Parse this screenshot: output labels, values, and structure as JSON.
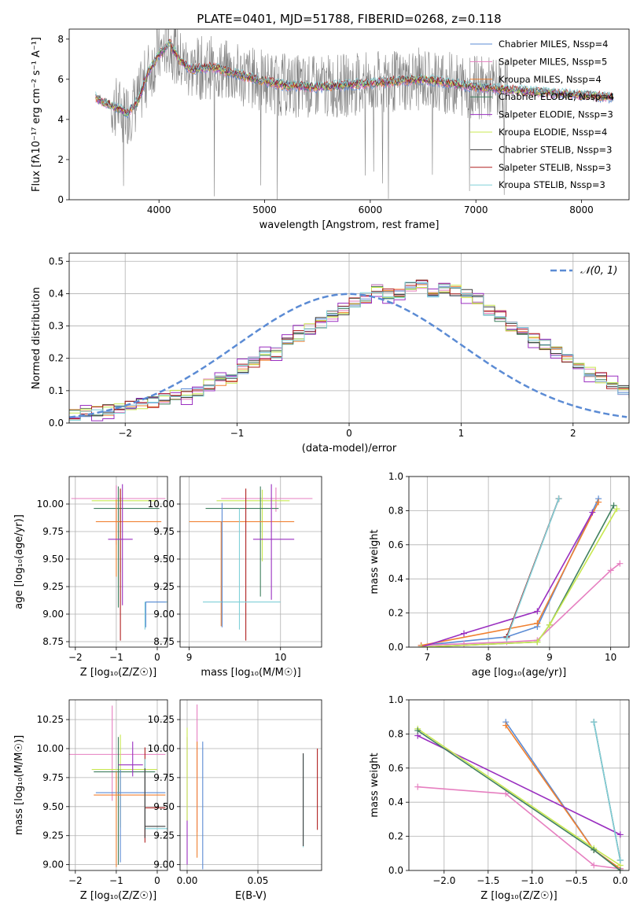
{
  "colors": {
    "chabrier_miles": "#5b8bd4",
    "salpeter_miles": "#e67fc0",
    "kroupa_miles": "#f08030",
    "chabrier_elodie": "#408060",
    "salpeter_elodie": "#9a2fc0",
    "kroupa_elodie": "#c8e850",
    "chabrier_stelib": "#3c3c3c",
    "salpeter_stelib": "#b02020",
    "kroupa_stelib": "#80d0d8",
    "data_gray": "#808080",
    "normal_curve": "#5b8bd4"
  },
  "chart_data": [
    {
      "id": "spectrum",
      "type": "line",
      "title": "PLATE=0401, MJD=51788, FIBERID=0268, z=0.118",
      "xlabel": "wavelength [Angstrom, rest frame]",
      "ylabel": "Flux [fλ10⁻¹⁷ erg cm⁻² s⁻¹ A⁻¹]",
      "xlim": [
        3150,
        8450
      ],
      "ylim": [
        0,
        8.5
      ],
      "xticks": [
        4000,
        5000,
        6000,
        7000,
        8000
      ],
      "yticks": [
        0,
        2,
        4,
        6,
        8
      ],
      "legend_position": "upper right",
      "series": [
        {
          "name": "Chabrier MILES, N_SSP=4",
          "color_key": "chabrier_miles"
        },
        {
          "name": "Salpeter MILES, N_SSP=5",
          "color_key": "salpeter_miles"
        },
        {
          "name": "Kroupa MILES, N_SSP=4",
          "color_key": "kroupa_miles"
        },
        {
          "name": "Chabrier ELODIE, N_SSP=4",
          "color_key": "chabrier_elodie"
        },
        {
          "name": "Salpeter ELODIE, N_SSP=3",
          "color_key": "salpeter_elodie"
        },
        {
          "name": "Kroupa ELODIE, N_SSP=4",
          "color_key": "kroupa_elodie"
        },
        {
          "name": "Chabrier STELIB, N_SSP=3",
          "color_key": "chabrier_stelib"
        },
        {
          "name": "Salpeter STELIB, N_SSP=3",
          "color_key": "salpeter_stelib"
        },
        {
          "name": "Kroupa STELIB, N_SSP=3",
          "color_key": "kroupa_stelib"
        }
      ],
      "continuum_model": [
        [
          3400,
          5.1
        ],
        [
          3500,
          4.8
        ],
        [
          3600,
          4.6
        ],
        [
          3700,
          4.3
        ],
        [
          3800,
          4.9
        ],
        [
          3900,
          6.4
        ],
        [
          4000,
          7.2
        ],
        [
          4100,
          7.8
        ],
        [
          4200,
          6.9
        ],
        [
          4300,
          6.5
        ],
        [
          4500,
          6.6
        ],
        [
          4700,
          6.3
        ],
        [
          5000,
          5.9
        ],
        [
          5200,
          5.7
        ],
        [
          5500,
          5.6
        ],
        [
          6000,
          5.8
        ],
        [
          6500,
          6.0
        ],
        [
          7000,
          5.6
        ],
        [
          7500,
          5.4
        ],
        [
          8000,
          5.2
        ],
        [
          8300,
          5.1
        ]
      ],
      "noisy_range": [
        3550,
        7300
      ]
    },
    {
      "id": "residuals",
      "type": "histogram",
      "xlabel": "(data-model)/error",
      "ylabel": "Normed distribution",
      "xlim": [
        -2.5,
        2.5
      ],
      "ylim": [
        0,
        0.525
      ],
      "xticks": [
        -2,
        -1,
        0,
        1,
        2
      ],
      "yticks": [
        0.0,
        0.1,
        0.2,
        0.3,
        0.4,
        0.5
      ],
      "legend_position": "upper right",
      "legend": [
        "𝒩(0, 1)"
      ],
      "bin_edges_from": -2.5,
      "bin_width": 0.1,
      "base_heights": [
        0.025,
        0.03,
        0.035,
        0.04,
        0.045,
        0.055,
        0.06,
        0.065,
        0.075,
        0.085,
        0.09,
        0.1,
        0.12,
        0.13,
        0.14,
        0.17,
        0.19,
        0.21,
        0.22,
        0.26,
        0.27,
        0.29,
        0.31,
        0.33,
        0.35,
        0.37,
        0.39,
        0.42,
        0.4,
        0.4,
        0.42,
        0.43,
        0.4,
        0.42,
        0.41,
        0.4,
        0.38,
        0.35,
        0.33,
        0.3,
        0.28,
        0.26,
        0.24,
        0.22,
        0.2,
        0.17,
        0.16,
        0.14,
        0.12,
        0.1,
        0.09,
        0.08,
        0.07,
        0.06,
        0.055,
        0.05,
        0.045,
        0.04,
        0.035,
        0.03
      ]
    },
    {
      "id": "age_vs_Z",
      "type": "errorbar",
      "xlabel": "Z [log₁₀(Z/Z☉)]",
      "ylabel": "age  [log₁₀(age/yr)]",
      "xlim": [
        -2.15,
        0.25
      ],
      "ylim": [
        8.7,
        10.25
      ],
      "xticks": [
        -2,
        -1,
        0
      ],
      "yticks": [
        8.75,
        9.0,
        9.25,
        9.5,
        9.75,
        10.0
      ],
      "points": [
        {
          "k": "salpeter_miles",
          "x": -1.0,
          "xerr": [
            1.1,
            1.2
          ],
          "y": 10.05,
          "yerr": [
            0.42,
            0.12
          ]
        },
        {
          "k": "kroupa_elodie",
          "x": -0.9,
          "xerr": [
            0.7,
            0.9
          ],
          "y": 10.03,
          "yerr": [
            0.65,
            0.1
          ]
        },
        {
          "k": "chabrier_elodie",
          "x": -0.95,
          "xerr": [
            0.6,
            1.0
          ],
          "y": 9.96,
          "yerr": [
            0.9,
            0.2
          ]
        },
        {
          "k": "kroupa_miles",
          "x": -1.0,
          "xerr": [
            0.5,
            1.1
          ],
          "y": 9.84,
          "yerr": [
            0.5,
            0.2
          ]
        },
        {
          "k": "salpeter_stelib",
          "x": -0.9,
          "xerr": [
            0.0,
            0.0
          ],
          "y": 9.84,
          "yerr": [
            1.08,
            0.3
          ]
        },
        {
          "k": "salpeter_elodie",
          "x": -0.85,
          "xerr": [
            0.35,
            0.25
          ],
          "y": 9.68,
          "yerr": [
            0.6,
            0.5
          ]
        },
        {
          "k": "kroupa_stelib",
          "x": -0.3,
          "xerr": [
            0.0,
            0.55
          ],
          "y": 9.11,
          "yerr": [
            0.25,
            0.0
          ]
        },
        {
          "k": "chabrier_miles",
          "x": -0.28,
          "xerr": [
            0.0,
            0.5
          ],
          "y": 9.11,
          "yerr": [
            0.23,
            0.0
          ]
        }
      ]
    },
    {
      "id": "age_vs_mass",
      "type": "errorbar",
      "xlabel": "mass [log₁₀(M/M☉)]",
      "ylabel": "",
      "xlim": [
        8.9,
        10.45
      ],
      "ylim": [
        8.7,
        10.25
      ],
      "xticks": [
        9,
        10
      ],
      "yticks": [
        8.75,
        9.0,
        9.25,
        9.5,
        9.75,
        10.0
      ],
      "points": [
        {
          "k": "salpeter_miles",
          "x": 9.95,
          "xerr": [
            0.6,
            0.4
          ],
          "y": 10.05,
          "yerr": [
            0.12,
            0.1
          ]
        },
        {
          "k": "kroupa_elodie",
          "x": 9.8,
          "xerr": [
            0.5,
            0.3
          ],
          "y": 10.03,
          "yerr": [
            0.55,
            0.1
          ]
        },
        {
          "k": "chabrier_elodie",
          "x": 9.78,
          "xerr": [
            0.6,
            0.2
          ],
          "y": 9.96,
          "yerr": [
            0.8,
            0.2
          ]
        },
        {
          "k": "kroupa_miles",
          "x": 9.35,
          "xerr": [
            0.35,
            0.8
          ],
          "y": 9.84,
          "yerr": [
            0.95,
            0.0
          ]
        },
        {
          "k": "salpeter_stelib",
          "x": 9.62,
          "xerr": [
            0.0,
            0.0
          ],
          "y": 9.84,
          "yerr": [
            1.08,
            0.3
          ]
        },
        {
          "k": "salpeter_elodie",
          "x": 9.9,
          "xerr": [
            0.2,
            0.25
          ],
          "y": 9.68,
          "yerr": [
            0.55,
            0.5
          ]
        },
        {
          "k": "kroupa_stelib",
          "x": 9.55,
          "xerr": [
            0.4,
            0.45
          ],
          "y": 9.11,
          "yerr": [
            0.25,
            0.85
          ]
        },
        {
          "k": "chabrier_miles",
          "x": 9.36,
          "xerr": [
            0.0,
            0.0
          ],
          "y": 9.11,
          "yerr": [
            0.23,
            0.9
          ]
        }
      ]
    },
    {
      "id": "weight_vs_age",
      "type": "line",
      "xlabel": "age  [log₁₀(age/yr)]",
      "ylabel": "mass weight",
      "xlim": [
        6.7,
        10.3
      ],
      "ylim": [
        0,
        1.0
      ],
      "xticks": [
        7,
        8,
        9,
        10
      ],
      "yticks": [
        0.0,
        0.2,
        0.4,
        0.6,
        0.8,
        1.0
      ],
      "series": [
        {
          "k": "chabrier_miles",
          "x": [
            6.9,
            8.3,
            8.8,
            9.8
          ],
          "y": [
            0.01,
            0.06,
            0.12,
            0.87
          ]
        },
        {
          "k": "salpeter_miles",
          "x": [
            6.9,
            7.6,
            8.3,
            8.8,
            10.0,
            10.15
          ],
          "y": [
            0.01,
            0.02,
            0.03,
            0.04,
            0.45,
            0.49
          ]
        },
        {
          "k": "kroupa_miles",
          "x": [
            6.9,
            8.8,
            9.8
          ],
          "y": [
            0.01,
            0.14,
            0.85
          ]
        },
        {
          "k": "chabrier_elodie",
          "x": [
            6.9,
            8.8,
            9.0,
            10.05
          ],
          "y": [
            0.0,
            0.03,
            0.13,
            0.83
          ]
        },
        {
          "k": "salpeter_elodie",
          "x": [
            6.9,
            7.6,
            8.8,
            9.7
          ],
          "y": [
            0.0,
            0.08,
            0.21,
            0.79
          ]
        },
        {
          "k": "kroupa_elodie",
          "x": [
            6.9,
            8.8,
            9.0,
            10.1
          ],
          "y": [
            0.0,
            0.03,
            0.13,
            0.81
          ]
        },
        {
          "k": "chabrier_stelib",
          "x": [
            8.3,
            9.15
          ],
          "y": [
            0.06,
            0.87
          ]
        },
        {
          "k": "salpeter_stelib",
          "x": [
            8.3,
            9.15
          ],
          "y": [
            0.06,
            0.87
          ]
        },
        {
          "k": "kroupa_stelib",
          "x": [
            8.3,
            9.15
          ],
          "y": [
            0.05,
            0.87
          ]
        }
      ]
    },
    {
      "id": "mass_vs_Z",
      "type": "errorbar",
      "xlabel": "Z [log₁₀(Z/Z☉)]",
      "ylabel": "mass [log₁₀(M/M☉)]",
      "xlim": [
        -2.15,
        0.25
      ],
      "ylim": [
        8.95,
        10.42
      ],
      "xticks": [
        -2,
        -1,
        0
      ],
      "yticks": [
        9.0,
        9.25,
        9.5,
        9.75,
        10.0,
        10.25
      ],
      "points": [
        {
          "k": "salpeter_miles",
          "x": -1.1,
          "xerr": [
            1.2,
            1.3
          ],
          "y": 9.95,
          "yerr": [
            0.4,
            0.42
          ]
        },
        {
          "k": "kroupa_elodie",
          "x": -0.9,
          "xerr": [
            0.7,
            0.9
          ],
          "y": 9.82,
          "yerr": [
            0.5,
            0.3
          ]
        },
        {
          "k": "chabrier_elodie",
          "x": -0.95,
          "xerr": [
            0.6,
            0.9
          ],
          "y": 9.8,
          "yerr": [
            0.8,
            0.3
          ]
        },
        {
          "k": "salpeter_elodie",
          "x": -0.6,
          "xerr": [
            0.35,
            0.25
          ],
          "y": 9.86,
          "yerr": [
            0.1,
            0.2
          ]
        },
        {
          "k": "chabrier_miles",
          "x": -0.9,
          "xerr": [
            0.6,
            1.1
          ],
          "y": 9.62,
          "yerr": [
            0.6,
            0.2
          ]
        },
        {
          "k": "kroupa_miles",
          "x": -1.0,
          "xerr": [
            0.55,
            1.2
          ],
          "y": 9.6,
          "yerr": [
            0.62,
            0.2
          ]
        },
        {
          "k": "salpeter_stelib",
          "x": -0.3,
          "xerr": [
            0.0,
            0.5
          ],
          "y": 9.49,
          "yerr": [
            0.3,
            0.52
          ]
        },
        {
          "k": "kroupa_stelib",
          "x": -0.3,
          "xerr": [
            0.0,
            0.55
          ],
          "y": 9.31,
          "yerr": [
            0.0,
            0.6
          ]
        },
        {
          "k": "chabrier_stelib",
          "x": -0.3,
          "xerr": [
            0.0,
            0.5
          ],
          "y": 9.33,
          "yerr": [
            0.1,
            0.5
          ]
        }
      ]
    },
    {
      "id": "mass_vs_ebv",
      "type": "errorbar",
      "xlabel": "E(B-V)",
      "ylabel": "",
      "xlim": [
        -0.005,
        0.095
      ],
      "ylim": [
        8.95,
        10.42
      ],
      "xticks": [
        0.0,
        0.05
      ],
      "yticks": [
        9.0,
        9.25,
        9.5,
        9.75,
        10.0,
        10.25
      ],
      "points": [
        {
          "k": "salpeter_elodie",
          "x": 0.0,
          "yerr": [
            0.6,
            0.5
          ],
          "y": 9.6
        },
        {
          "k": "kroupa_elodie",
          "x": 0.0,
          "yerr": [
            0.2,
            0.6
          ],
          "y": 9.58
        },
        {
          "k": "salpeter_miles",
          "x": 0.007,
          "yerr": [
            0.3,
            0.8
          ],
          "y": 9.58
        },
        {
          "k": "kroupa_miles",
          "x": 0.007,
          "yerr": [
            0.5,
            0.5
          ],
          "y": 9.56
        },
        {
          "k": "chabrier_miles",
          "x": 0.011,
          "yerr": [
            0.6,
            0.5
          ],
          "y": 9.56
        },
        {
          "k": "kroupa_stelib",
          "x": 0.082,
          "yerr": [
            0.4,
            0.4
          ],
          "y": 9.55
        },
        {
          "k": "chabrier_stelib",
          "x": 0.082,
          "yerr": [
            0.4,
            0.4
          ],
          "y": 9.56
        },
        {
          "k": "salpeter_stelib",
          "x": 0.092,
          "yerr": [
            0.35,
            0.35
          ],
          "y": 9.65
        }
      ]
    },
    {
      "id": "weight_vs_Z",
      "type": "line",
      "xlabel": "Z [log₁₀(Z/Z☉)]",
      "ylabel": "mass weight",
      "xlim": [
        -2.4,
        0.1
      ],
      "ylim": [
        0,
        1.0
      ],
      "xticks": [
        -2.0,
        -1.5,
        -1.0,
        -0.5,
        0.0
      ],
      "yticks": [
        0.0,
        0.2,
        0.4,
        0.6,
        0.8,
        1.0
      ],
      "series": [
        {
          "k": "chabrier_miles",
          "x": [
            -1.3,
            -0.3,
            0.0
          ],
          "y": [
            0.87,
            0.12,
            0.01
          ]
        },
        {
          "k": "kroupa_miles",
          "x": [
            -1.3,
            -0.3,
            0.0
          ],
          "y": [
            0.85,
            0.12,
            0.01
          ]
        },
        {
          "k": "salpeter_miles",
          "x": [
            -2.3,
            -1.3,
            -0.3,
            0.0
          ],
          "y": [
            0.49,
            0.45,
            0.03,
            0.01
          ]
        },
        {
          "k": "salpeter_elodie",
          "x": [
            -2.3,
            0.0
          ],
          "y": [
            0.79,
            0.21
          ]
        },
        {
          "k": "kroupa_elodie",
          "x": [
            -2.3,
            -0.3,
            0.0
          ],
          "y": [
            0.83,
            0.13,
            0.03
          ]
        },
        {
          "k": "chabrier_elodie",
          "x": [
            -2.3,
            -0.3,
            0.0
          ],
          "y": [
            0.82,
            0.12,
            0.0
          ]
        },
        {
          "k": "chabrier_stelib",
          "x": [
            -0.3,
            0.0
          ],
          "y": [
            0.87,
            0.06
          ]
        },
        {
          "k": "kroupa_stelib",
          "x": [
            -0.3,
            0.0
          ],
          "y": [
            0.87,
            0.06
          ]
        }
      ]
    }
  ]
}
